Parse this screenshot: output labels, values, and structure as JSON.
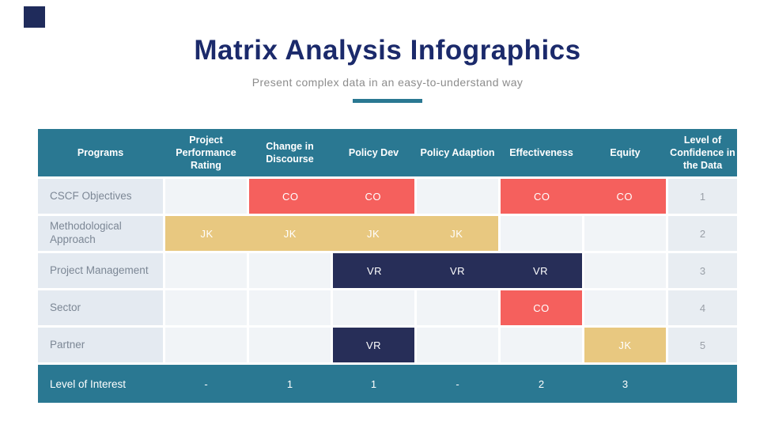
{
  "header": {
    "title": "Matrix Analysis Infographics",
    "subtitle": "Present complex data in an easy-to-understand way"
  },
  "table": {
    "columns": [
      "Programs",
      "Project Performance Rating",
      "Change in Discourse",
      "Policy Dev",
      "Policy Adaption",
      "Effectiveness",
      "Equity",
      "Level of Confidence in the Data"
    ],
    "rows": [
      {
        "label": "CSCF Objectives",
        "cells": [
          "",
          "CO",
          "CO",
          "",
          "CO",
          "CO"
        ],
        "level": "1"
      },
      {
        "label": "Methodological Approach",
        "cells": [
          "JK",
          "JK",
          "JK",
          "JK",
          "",
          ""
        ],
        "level": "2"
      },
      {
        "label": "Project Management",
        "cells": [
          "",
          "",
          "VR",
          "VR",
          "VR",
          ""
        ],
        "level": "3"
      },
      {
        "label": "Sector",
        "cells": [
          "",
          "",
          "",
          "",
          "CO",
          ""
        ],
        "level": "4"
      },
      {
        "label": "Partner",
        "cells": [
          "",
          "",
          "VR",
          "",
          "",
          "JK"
        ],
        "level": "5"
      }
    ],
    "footer": {
      "label": "Level of Interest",
      "values": [
        "-",
        "1",
        "1",
        "-",
        "2",
        "3",
        ""
      ]
    }
  },
  "colors": {
    "teal": "#2A7892",
    "red": "#F5605D",
    "tan": "#E8C880",
    "navy": "#272E58",
    "title_navy": "#1B2A6B"
  },
  "chart_data": {
    "type": "table",
    "title": "Matrix Analysis Infographics",
    "subtitle": "Present complex data in an easy-to-understand way",
    "columns": [
      "Programs",
      "Project Performance Rating",
      "Change in Discourse",
      "Policy Dev",
      "Policy Adaption",
      "Effectiveness",
      "Equity",
      "Level of Confidence in the Data"
    ],
    "rows": [
      [
        "CSCF Objectives",
        "",
        "CO",
        "CO",
        "",
        "CO",
        "CO",
        "1"
      ],
      [
        "Methodological Approach",
        "JK",
        "JK",
        "JK",
        "JK",
        "",
        "",
        "2"
      ],
      [
        "Project Management",
        "",
        "",
        "VR",
        "VR",
        "VR",
        "",
        "3"
      ],
      [
        "Sector",
        "",
        "",
        "",
        "",
        "CO",
        "",
        "4"
      ],
      [
        "Partner",
        "",
        "",
        "VR",
        "",
        "",
        "JK",
        "5"
      ]
    ],
    "footer_row": [
      "Level of Interest",
      "-",
      "1",
      "1",
      "-",
      "2",
      "3",
      ""
    ],
    "cell_colors": {
      "CO": "#F5605D",
      "JK": "#E8C880",
      "VR": "#272E58"
    },
    "legend_position": "none",
    "grid": false
  }
}
